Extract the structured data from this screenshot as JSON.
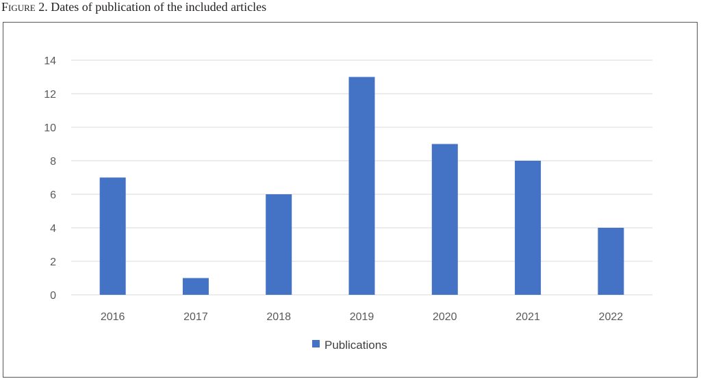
{
  "figure": {
    "label": "Figure 2.",
    "caption": "Dates of publication of the included articles"
  },
  "chart_data": {
    "type": "bar",
    "categories": [
      "2016",
      "2017",
      "2018",
      "2019",
      "2020",
      "2021",
      "2022"
    ],
    "series": [
      {
        "name": "Publications",
        "values": [
          7,
          1,
          6,
          13,
          9,
          8,
          4
        ],
        "color": "#4472c4"
      }
    ],
    "ylim": [
      0,
      14
    ],
    "yticks": [
      0,
      2,
      4,
      6,
      8,
      10,
      12,
      14
    ],
    "grid": true,
    "legend": "bottom",
    "title": "",
    "xlabel": "",
    "ylabel": ""
  }
}
